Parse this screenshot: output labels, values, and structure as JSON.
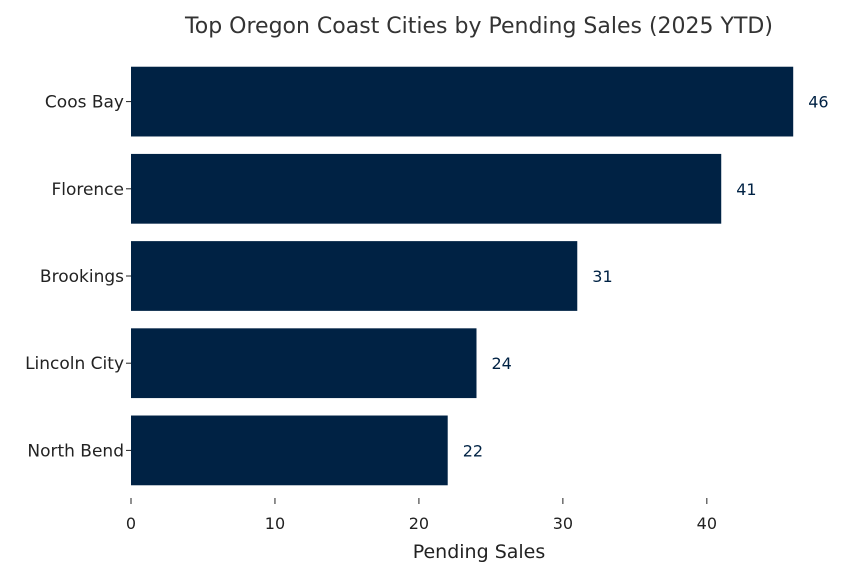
{
  "chart_data": {
    "type": "bar",
    "orientation": "horizontal",
    "title": "Top Oregon Coast Cities by Pending Sales (2025 YTD)",
    "xlabel": "Pending Sales",
    "ylabel": "",
    "categories": [
      "Coos Bay",
      "Florence",
      "Brookings",
      "Lincoln City",
      "North Bend"
    ],
    "values": [
      46,
      41,
      31,
      24,
      22
    ],
    "data_labels": [
      "46",
      "41",
      "31",
      "24",
      "22"
    ],
    "xlim": [
      0,
      48
    ],
    "xticks": [
      0,
      10,
      20,
      30,
      40
    ],
    "xtick_labels": [
      "0",
      "10",
      "20",
      "30",
      "40"
    ],
    "grid": false,
    "colors": {
      "bar": "#002244",
      "data_label": "#002244",
      "axis": "#222222"
    }
  }
}
